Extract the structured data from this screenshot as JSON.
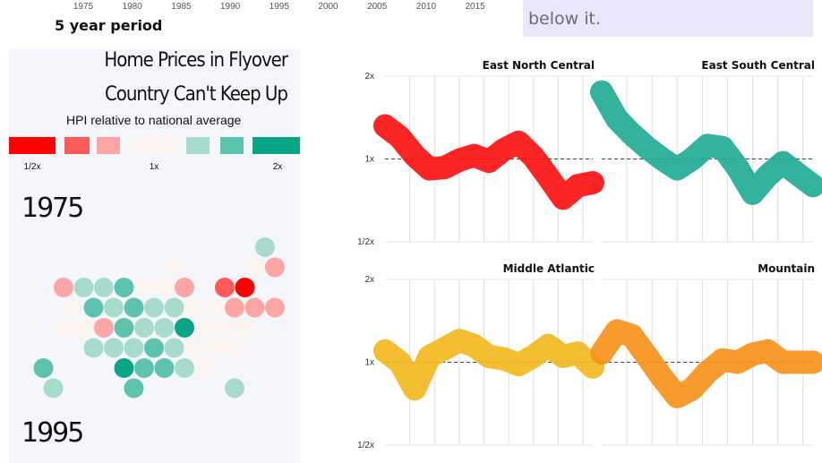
{
  "top_axis": {
    "ticks": [
      "1975",
      "1980",
      "1985",
      "1990",
      "1995",
      "2000",
      "2005",
      "2010",
      "2015"
    ],
    "period_label": "5 year period"
  },
  "note": {
    "text": "below it."
  },
  "header": {
    "title_line1": "Home Prices in Flyover",
    "title_line2": "Country Can't Keep Up",
    "subtitle": "HPI relative to national average"
  },
  "legend": {
    "colors": [
      "#ff0000",
      "#ff5a5a",
      "#fca5a5",
      "#fbf3ee",
      "#a7dccd",
      "#5cc4ad",
      "#0aa487"
    ],
    "labels": [
      "1/2x",
      "1x",
      "2x"
    ]
  },
  "years": {
    "start": "1975",
    "end": "1995"
  },
  "hexmap": {
    "cells": [
      {
        "row": 0,
        "col": 12,
        "color": "#a7dccd"
      },
      {
        "row": 1,
        "col": 7,
        "color": "#fbf3ee"
      },
      {
        "row": 1,
        "col": 11,
        "color": "#fbf3ee"
      },
      {
        "row": 1,
        "col": 12,
        "color": "#fca5a5"
      },
      {
        "row": 2,
        "col": 2,
        "color": "#fca5a5"
      },
      {
        "row": 2,
        "col": 3,
        "color": "#a7dccd"
      },
      {
        "row": 2,
        "col": 4,
        "color": "#a7dccd"
      },
      {
        "row": 2,
        "col": 5,
        "color": "#5cc4ad"
      },
      {
        "row": 2,
        "col": 6,
        "color": "#fbf3ee"
      },
      {
        "row": 2,
        "col": 7,
        "color": "#fbf3ee"
      },
      {
        "row": 2,
        "col": 8,
        "color": "#fca5a5"
      },
      {
        "row": 2,
        "col": 10,
        "color": "#ff5a5a"
      },
      {
        "row": 2,
        "col": 11,
        "color": "#ff0000"
      },
      {
        "row": 3,
        "col": 2,
        "color": "#fbf3ee"
      },
      {
        "row": 3,
        "col": 3,
        "color": "#5cc4ad"
      },
      {
        "row": 3,
        "col": 4,
        "color": "#a7dccd"
      },
      {
        "row": 3,
        "col": 5,
        "color": "#5cc4ad"
      },
      {
        "row": 3,
        "col": 6,
        "color": "#a7dccd"
      },
      {
        "row": 3,
        "col": 7,
        "color": "#a7dccd"
      },
      {
        "row": 3,
        "col": 8,
        "color": "#fbf3ee"
      },
      {
        "row": 3,
        "col": 9,
        "color": "#fbf3ee"
      },
      {
        "row": 3,
        "col": 10,
        "color": "#fca5a5"
      },
      {
        "row": 3,
        "col": 11,
        "color": "#fca5a5"
      },
      {
        "row": 3,
        "col": 12,
        "color": "#fca5a5"
      },
      {
        "row": 4,
        "col": 2,
        "color": "#fbf3ee"
      },
      {
        "row": 4,
        "col": 3,
        "color": "#fbf3ee"
      },
      {
        "row": 4,
        "col": 4,
        "color": "#fca5a5"
      },
      {
        "row": 4,
        "col": 5,
        "color": "#5cc4ad"
      },
      {
        "row": 4,
        "col": 6,
        "color": "#a7dccd"
      },
      {
        "row": 4,
        "col": 7,
        "color": "#a7dccd"
      },
      {
        "row": 4,
        "col": 8,
        "color": "#0aa487"
      },
      {
        "row": 4,
        "col": 9,
        "color": "#fbf3ee"
      },
      {
        "row": 4,
        "col": 10,
        "color": "#fbf3ee"
      },
      {
        "row": 4,
        "col": 11,
        "color": "#fbf3ee"
      },
      {
        "row": 5,
        "col": 3,
        "color": "#a7dccd"
      },
      {
        "row": 5,
        "col": 4,
        "color": "#a7dccd"
      },
      {
        "row": 5,
        "col": 5,
        "color": "#a7dccd"
      },
      {
        "row": 5,
        "col": 6,
        "color": "#5cc4ad"
      },
      {
        "row": 5,
        "col": 7,
        "color": "#a7dccd"
      },
      {
        "row": 5,
        "col": 8,
        "color": "#fbf3ee"
      },
      {
        "row": 5,
        "col": 9,
        "color": "#fbf3ee"
      },
      {
        "row": 5,
        "col": 10,
        "color": "#fbf3ee"
      },
      {
        "row": 6,
        "col": 1,
        "color": "#5cc4ad"
      },
      {
        "row": 6,
        "col": 5,
        "color": "#0aa487"
      },
      {
        "row": 6,
        "col": 6,
        "color": "#5cc4ad"
      },
      {
        "row": 6,
        "col": 7,
        "color": "#5cc4ad"
      },
      {
        "row": 6,
        "col": 8,
        "color": "#a7dccd"
      },
      {
        "row": 6,
        "col": 9,
        "color": "#fbf3ee"
      },
      {
        "row": 7,
        "col": 1,
        "color": "#a7dccd"
      },
      {
        "row": 7,
        "col": 5,
        "color": "#5cc4ad"
      },
      {
        "row": 7,
        "col": 10,
        "color": "#a7dccd"
      }
    ]
  },
  "chart_data": {
    "type": "line",
    "y_scale": "log2",
    "y_ticks": [
      "2x",
      "1x",
      "1/2x"
    ],
    "y_values": [
      2,
      1,
      0.5
    ],
    "reference_line": 1,
    "x_range": [
      1975,
      2017
    ],
    "panels": [
      {
        "name": "East North Central",
        "color": "#fb1212",
        "x": [
          1975,
          1978,
          1981,
          1984,
          1987,
          1990,
          1993,
          1996,
          1999,
          2002,
          2005,
          2008,
          2011,
          2014,
          2017
        ],
        "y": [
          1.32,
          1.2,
          1.03,
          0.92,
          0.93,
          0.99,
          1.03,
          0.98,
          1.08,
          1.15,
          1.02,
          0.86,
          0.72,
          0.8,
          0.82
        ]
      },
      {
        "name": "East South Central",
        "color": "#22ad95",
        "x": [
          1975,
          1978,
          1981,
          1984,
          1987,
          1990,
          1993,
          1996,
          1999,
          2002,
          2005,
          2008,
          2011,
          2014,
          2017
        ],
        "y": [
          1.75,
          1.4,
          1.23,
          1.1,
          1.0,
          0.92,
          1.0,
          1.12,
          1.1,
          0.93,
          0.75,
          0.87,
          0.97,
          0.88,
          0.8
        ]
      },
      {
        "name": "Middle Atlantic",
        "color": "#f2b81e",
        "x": [
          1975,
          1978,
          1981,
          1984,
          1987,
          1990,
          1993,
          1996,
          1999,
          2002,
          2005,
          2008,
          2011,
          2014,
          2017
        ],
        "y": [
          1.1,
          1.0,
          0.8,
          1.05,
          1.12,
          1.2,
          1.15,
          1.05,
          1.03,
          0.98,
          1.05,
          1.15,
          1.05,
          1.08,
          0.96
        ]
      },
      {
        "name": "Mountain",
        "color": "#f6921c",
        "x": [
          1975,
          1978,
          1981,
          1984,
          1987,
          1990,
          1993,
          1996,
          1999,
          2002,
          2005,
          2008,
          2011,
          2014,
          2017
        ],
        "y": [
          1.08,
          1.3,
          1.25,
          1.05,
          0.88,
          0.75,
          0.8,
          0.92,
          1.02,
          1.0,
          1.07,
          1.1,
          1.0,
          1.0,
          1.0
        ]
      }
    ]
  }
}
